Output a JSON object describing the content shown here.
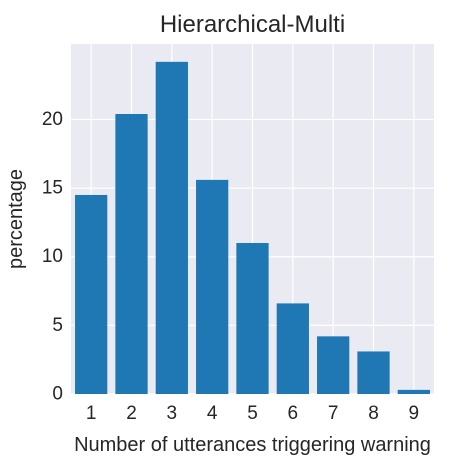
{
  "chart_data": {
    "type": "bar",
    "title": "Hierarchical-Multi",
    "xlabel": "Number of utterances triggering warning",
    "ylabel": "percentage",
    "categories": [
      "1",
      "2",
      "3",
      "4",
      "5",
      "6",
      "7",
      "8",
      "9"
    ],
    "values": [
      14.5,
      20.4,
      24.2,
      15.6,
      11.0,
      6.6,
      4.2,
      3.1,
      0.3
    ],
    "ylim": [
      0,
      25.5
    ],
    "yticks": [
      0,
      5,
      10,
      15,
      20
    ],
    "grid": true,
    "legend": "none",
    "colors": {
      "bar": "#1f77b4",
      "plot_background": "#eaeaf2",
      "grid": "#ffffff",
      "text": "#262626"
    }
  }
}
